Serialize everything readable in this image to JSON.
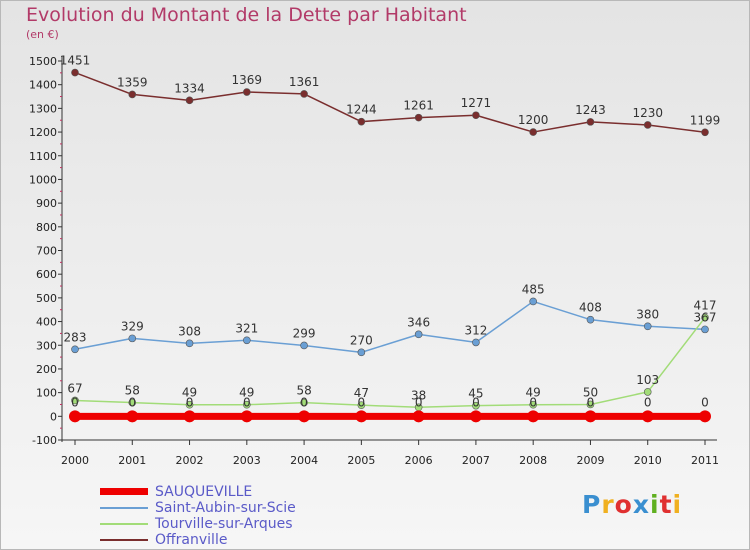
{
  "title": "Evolution du Montant de la Dette par Habitant",
  "subtitle": "(en €)",
  "logo": {
    "text": "Proxiti",
    "letter_colors": [
      "#3a8fd0",
      "#f0b020",
      "#e03030",
      "#3a8fd0",
      "#60b020",
      "#e03030",
      "#f0b020"
    ]
  },
  "chart_data": {
    "type": "line",
    "x": [
      "2000",
      "2001",
      "2002",
      "2003",
      "2004",
      "2005",
      "2006",
      "2007",
      "2008",
      "2009",
      "2010",
      "2011"
    ],
    "ylim": [
      -100,
      1500
    ],
    "yticks": [
      "-100",
      "0",
      "100",
      "200",
      "300",
      "400",
      "500",
      "600",
      "700",
      "800",
      "900",
      "1000",
      "1100",
      "1200",
      "1300",
      "1400",
      "1500"
    ],
    "grid": false,
    "legend_position": "bottom-left",
    "series": [
      {
        "name": "SAUQUEVILLE",
        "color": "#ee0000",
        "values": [
          0,
          0,
          0,
          0,
          0,
          0,
          0,
          0,
          0,
          0,
          0,
          0
        ],
        "labels": [
          "0",
          "0",
          "0",
          "0",
          "0",
          "0",
          "0",
          "0",
          "0",
          "0",
          "0",
          "0"
        ]
      },
      {
        "name": "Saint-Aubin-sur-Scie",
        "color": "#6a9fd4",
        "values": [
          283,
          329,
          308,
          321,
          299,
          270,
          346,
          312,
          485,
          408,
          380,
          367
        ],
        "labels": [
          "283",
          "329",
          "308",
          "321",
          "299",
          "270",
          "346",
          "312",
          "485",
          "408",
          "380",
          "367"
        ]
      },
      {
        "name": "Tourville-sur-Arques",
        "color": "#a2dc78",
        "values": [
          67,
          58,
          49,
          49,
          58,
          47,
          38,
          45,
          49,
          50,
          103,
          417
        ],
        "labels": [
          "67",
          "58",
          "49",
          "49",
          "58",
          "47",
          "38",
          "45",
          "49",
          "50",
          "103",
          "417"
        ]
      },
      {
        "name": "Offranville",
        "color": "#7a2e2e",
        "values": [
          1451,
          1359,
          1334,
          1369,
          1361,
          1244,
          1261,
          1271,
          1200,
          1243,
          1230,
          1199
        ],
        "labels": [
          "1451",
          "1359",
          "1334",
          "1369",
          "1361",
          "1244",
          "1261",
          "1271",
          "1200",
          "1243",
          "1230",
          "1199"
        ]
      }
    ]
  }
}
